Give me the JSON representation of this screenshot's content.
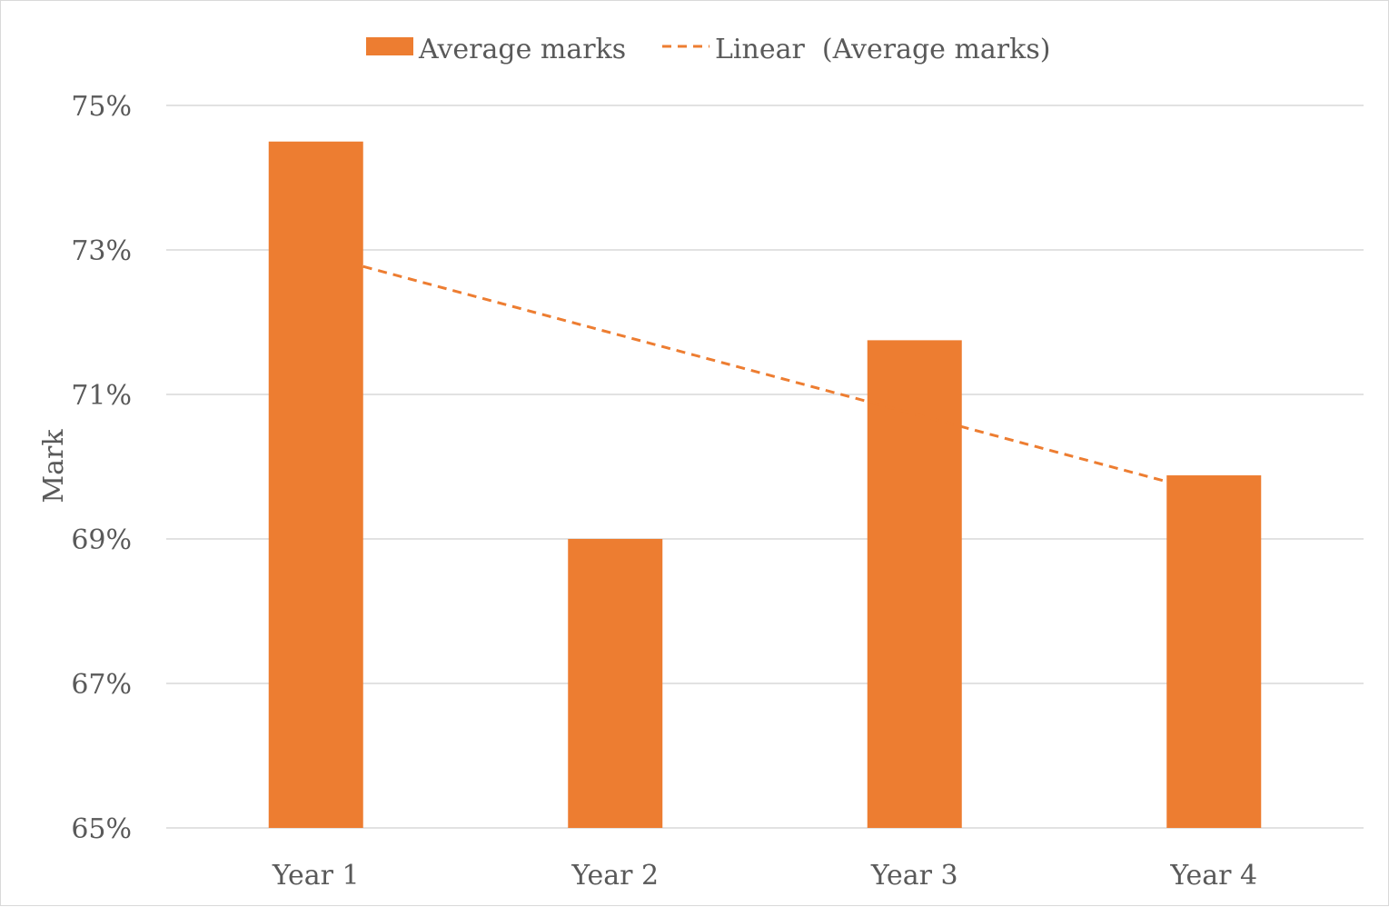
{
  "chart_data": {
    "type": "bar",
    "categories": [
      "Year 1",
      "Year 2",
      "Year 3",
      "Year 4"
    ],
    "series": [
      {
        "name": "Average marks",
        "values": [
          74.5,
          69.0,
          71.75,
          69.88
        ],
        "color": "#ed7d31"
      }
    ],
    "trendline": {
      "name": "Linear  (Average marks)",
      "type": "linear",
      "style": "dashed",
      "color": "#ed7d31"
    },
    "title": "",
    "xlabel": "",
    "ylabel": "Mark",
    "ylim": [
      65,
      75
    ],
    "yticks": [
      65,
      67,
      69,
      71,
      73,
      75
    ],
    "ytick_labels": [
      "65%",
      "67%",
      "69%",
      "71%",
      "73%",
      "75%"
    ],
    "grid": true,
    "legend_position": "top"
  }
}
